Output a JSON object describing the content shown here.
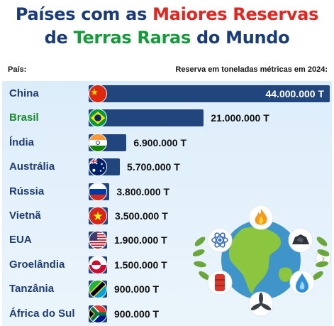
{
  "title": {
    "line1_a": "Países com as ",
    "line1_b": "Maiores Reservas",
    "line2_a": "de ",
    "line2_b": "Terras Raras",
    "line2_c": " do Mundo"
  },
  "colors": {
    "title_blue": "#1a3c79",
    "title_red": "#e1261f",
    "title_green": "#159a3c",
    "bar": "#21467e"
  },
  "header": {
    "country_col": "País:",
    "value_col": "Reserva em toneladas métricas em 2024:"
  },
  "chart_data": {
    "type": "bar",
    "orientation": "horizontal",
    "categories": [
      "China",
      "Brasil",
      "Índia",
      "Austrália",
      "Rússia",
      "Vietnã",
      "EUA",
      "Groelândia",
      "Tanzânia",
      "África do Sul"
    ],
    "values": [
      44000000,
      21000000,
      6900000,
      5700000,
      3800000,
      3500000,
      1900000,
      1500000,
      900000,
      900000
    ],
    "value_labels": [
      "44.000.000 T",
      "21.000.000 T",
      "6.900.000 T",
      "5.700.000 T",
      "3.800.000 T",
      "3.500.000 T",
      "1.900.000 T",
      "1.500.000 T",
      "900.000 T",
      "900.000 T"
    ],
    "highlight": "Brasil",
    "title": "",
    "xlabel": "",
    "ylabel": ""
  },
  "flags": [
    "china-flag-icon",
    "brazil-flag-icon",
    "india-flag-icon",
    "australia-flag-icon",
    "russia-flag-icon",
    "vietnam-flag-icon",
    "usa-flag-icon",
    "greenland-flag-icon",
    "tanzania-flag-icon",
    "south-africa-flag-icon"
  ],
  "illustration_icons": [
    "fire-icon",
    "atom-icon",
    "coal-icon",
    "oil-barrel-icon",
    "water-drop-icon",
    "wind-turbine-icon",
    "globe-icon"
  ],
  "nav": {
    "next_icon": "chevron-right-icon"
  }
}
